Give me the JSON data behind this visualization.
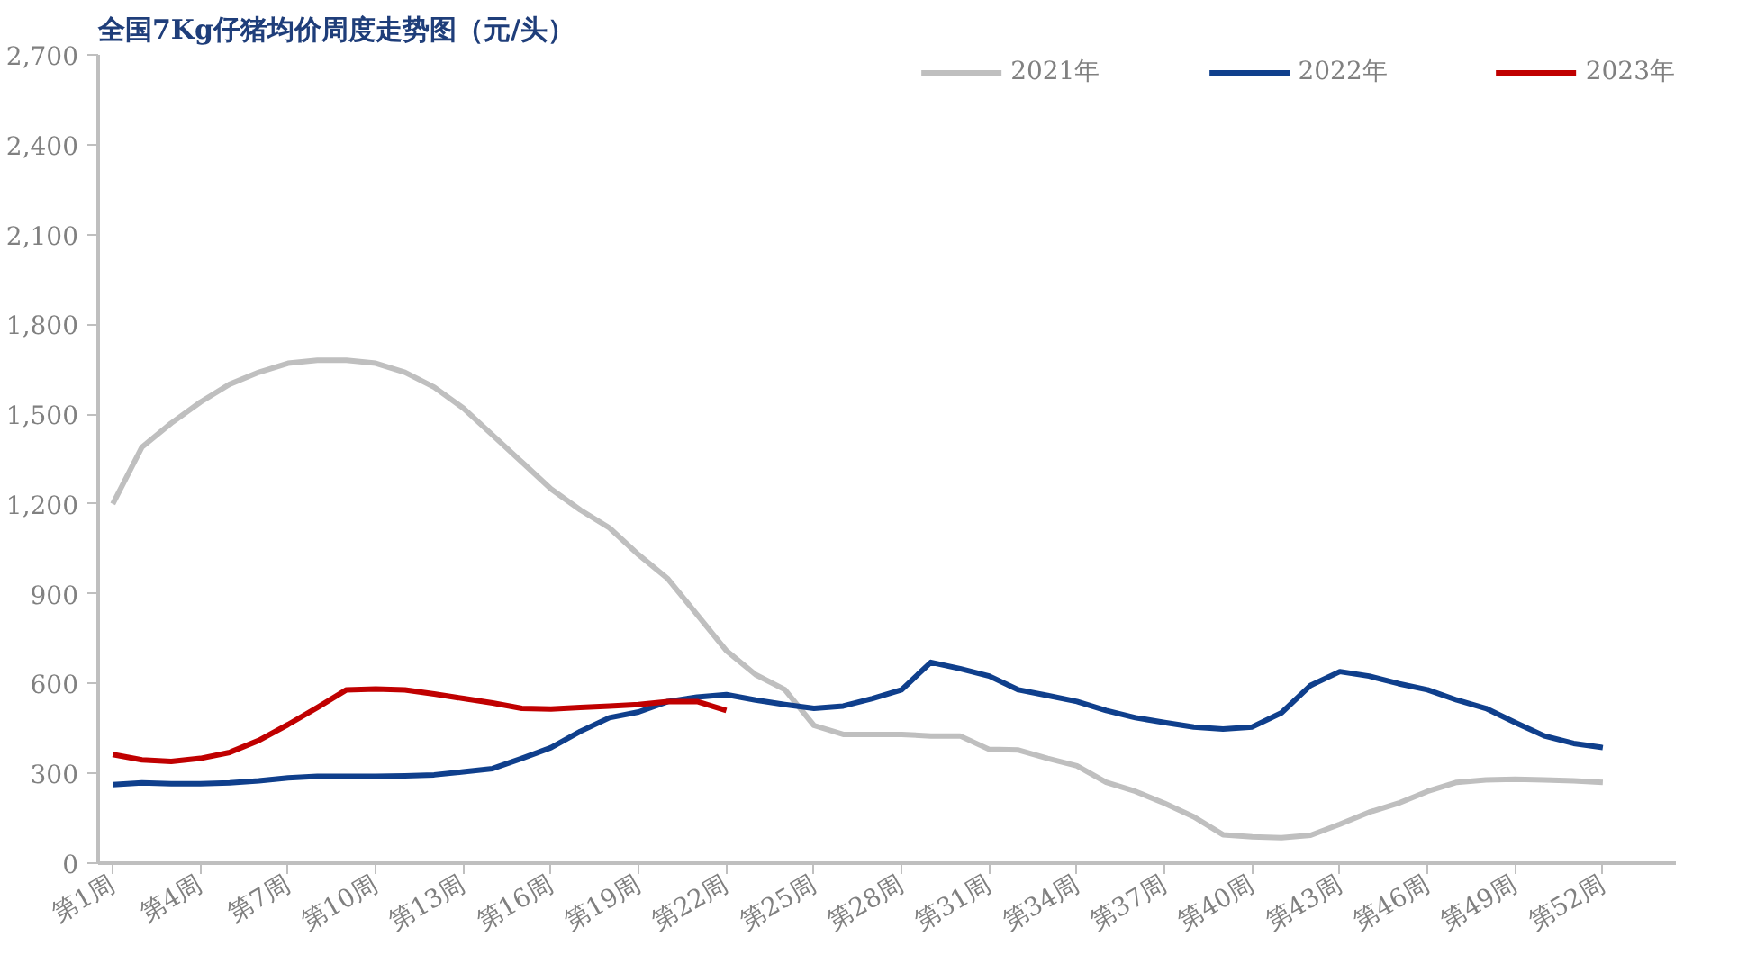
{
  "chart_data": {
    "type": "line",
    "title": "全国7Kg仔猪均价周度走势图（元/头）",
    "categories": [
      "第1周",
      null,
      null,
      "第4周",
      null,
      null,
      "第7周",
      null,
      null,
      "第10周",
      null,
      null,
      "第13周",
      null,
      null,
      "第16周",
      null,
      null,
      "第19周",
      null,
      null,
      "第22周",
      null,
      null,
      "第25周",
      null,
      null,
      "第28周",
      null,
      null,
      "第31周",
      null,
      null,
      "第34周",
      null,
      null,
      "第37周",
      null,
      null,
      "第40周",
      null,
      null,
      "第43周",
      null,
      null,
      "第46周",
      null,
      null,
      "第49周",
      null,
      null,
      "第52周"
    ],
    "series": [
      {
        "name": "2021年",
        "color": "#bfbfbf",
        "values": [
          1200,
          1390,
          1470,
          1540,
          1600,
          1640,
          1670,
          1680,
          1680,
          1670,
          1640,
          1590,
          1520,
          1430,
          1340,
          1250,
          1180,
          1120,
          1030,
          950,
          830,
          710,
          630,
          580,
          460,
          430,
          430,
          430,
          425,
          425,
          380,
          378,
          350,
          325,
          270,
          240,
          200,
          155,
          95,
          88,
          85,
          93,
          130,
          170,
          200,
          240,
          270,
          278,
          280,
          278,
          275,
          270
        ]
      },
      {
        "name": "2022年",
        "color": "#0f3f8c",
        "values": [
          262,
          268,
          265,
          265,
          268,
          275,
          285,
          290,
          290,
          290,
          292,
          295,
          305,
          316,
          350,
          386,
          440,
          486,
          505,
          540,
          555,
          563,
          545,
          530,
          517,
          525,
          550,
          579,
          671,
          650,
          625,
          579,
          560,
          540,
          510,
          486,
          470,
          455,
          448,
          455,
          502,
          594,
          640,
          625,
          600,
          579,
          545,
          517,
          470,
          425,
          400,
          386
        ]
      },
      {
        "name": "2023年",
        "color": "#c00000",
        "values": [
          363,
          345,
          340,
          350,
          370,
          410,
          463,
          520,
          579,
          582,
          579,
          565,
          550,
          535,
          517,
          515,
          520,
          525,
          530,
          540,
          540,
          510,
          null,
          null,
          null,
          null,
          null,
          null,
          null,
          null,
          null,
          null,
          null,
          null,
          null,
          null,
          null,
          null,
          null,
          null,
          null,
          null,
          null,
          null,
          null,
          null,
          null,
          null,
          null,
          null,
          null,
          null
        ]
      }
    ],
    "ylim": [
      0,
      2700
    ],
    "yticks": [
      0,
      {
        "value": 300,
        "label": "300"
      },
      {
        "value": 600,
        "label": "600"
      },
      {
        "value": 900,
        "label": "900"
      },
      {
        "value": 1200,
        "label": "1,200"
      },
      {
        "value": 1500,
        "label": "1,500"
      },
      {
        "value": 1800,
        "label": "1,800"
      },
      {
        "value": 2100,
        "label": "2,100"
      },
      {
        "value": 2400,
        "label": "2,400"
      },
      {
        "value": 2700,
        "label": "2,700"
      }
    ],
    "grid": false,
    "legend": "top",
    "marker": "none",
    "line_style": "solid"
  }
}
